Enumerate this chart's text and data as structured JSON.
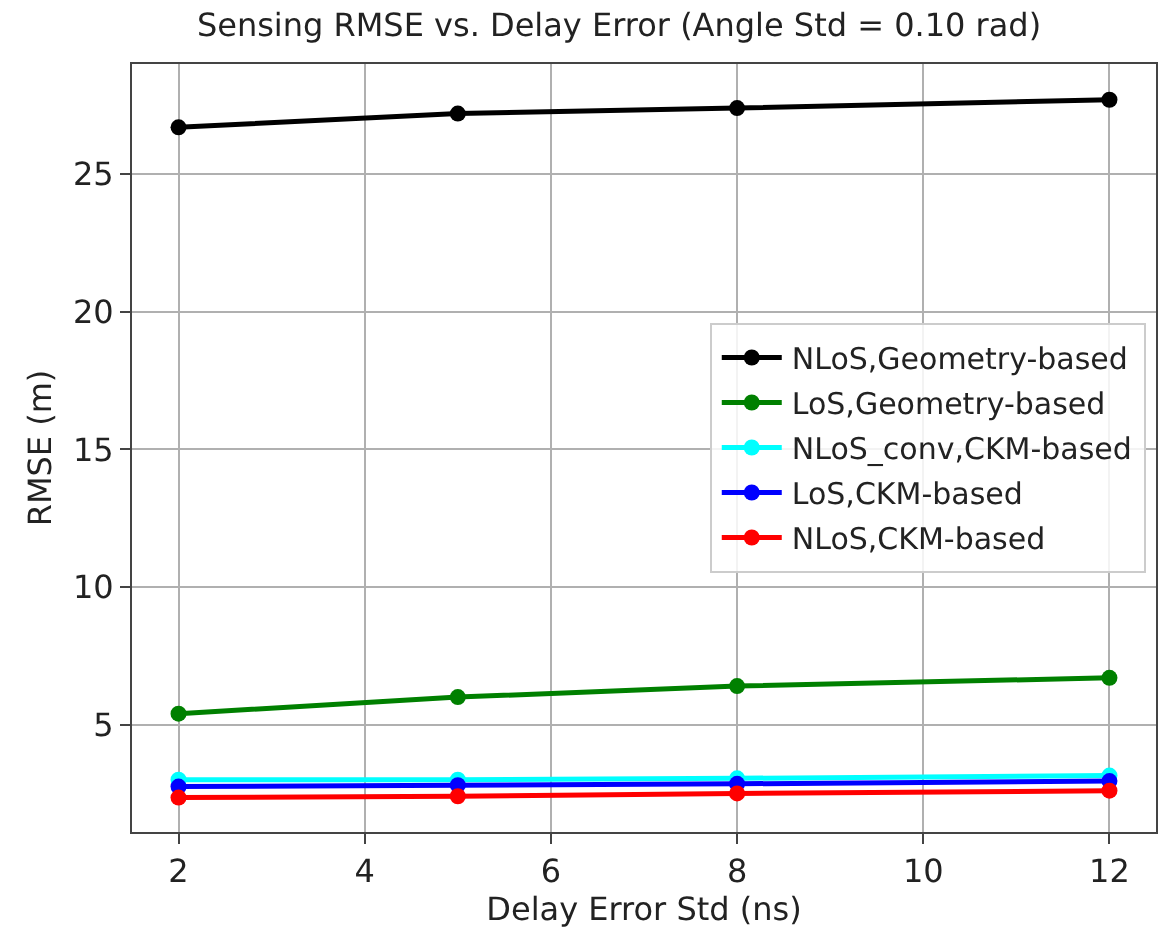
{
  "chart_data": {
    "type": "line",
    "title": "Sensing RMSE vs. Delay Error (Angle Std = 0.10 rad)",
    "xlabel": "Delay Error Std (ns)",
    "ylabel": "RMSE (m)",
    "x": [
      2,
      5,
      8,
      12
    ],
    "series": [
      {
        "name": "NLoS,Geometry-based",
        "color": "#000000",
        "values": [
          26.7,
          27.2,
          27.4,
          27.7
        ]
      },
      {
        "name": "LoS,Geometry-based",
        "color": "#008000",
        "values": [
          5.4,
          6.0,
          6.4,
          6.7
        ]
      },
      {
        "name": "NLoS_conv,CKM-based",
        "color": "#00ffff",
        "values": [
          3.0,
          3.0,
          3.05,
          3.15
        ]
      },
      {
        "name": "LoS,CKM-based",
        "color": "#0000ff",
        "values": [
          2.75,
          2.8,
          2.85,
          2.95
        ]
      },
      {
        "name": "NLoS,CKM-based",
        "color": "#ff0000",
        "values": [
          2.35,
          2.4,
          2.5,
          2.6
        ]
      }
    ],
    "xlim": [
      1.5,
      12.5
    ],
    "xticks": [
      2,
      4,
      6,
      8,
      10,
      12
    ],
    "ylim": [
      1.1,
      29.0
    ],
    "yticks": [
      5,
      10,
      15,
      20,
      25
    ],
    "grid": true,
    "legend": "right",
    "marker": "circle",
    "line_style": "solid"
  }
}
